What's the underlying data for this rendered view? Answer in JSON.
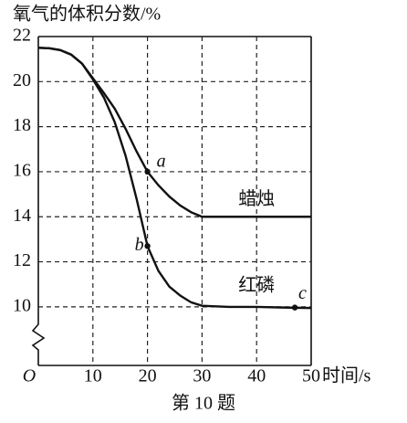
{
  "chart_data": {
    "type": "line",
    "y_label": "氧气的体积分数/%",
    "x_label": "时间/s",
    "caption": "第 10 题",
    "x": [
      0,
      2,
      4,
      6,
      8,
      10,
      12,
      14,
      16,
      18,
      20,
      22,
      24,
      26,
      28,
      30,
      35,
      40,
      45,
      50
    ],
    "series": [
      {
        "name": "蜡烛",
        "color": "#111111",
        "values": [
          21.5,
          21.48,
          21.4,
          21.2,
          20.8,
          20.15,
          19.5,
          18.8,
          17.9,
          16.9,
          16.0,
          15.4,
          14.9,
          14.5,
          14.2,
          14.0,
          14.0,
          14.0,
          14.0,
          14.0
        ]
      },
      {
        "name": "红磷",
        "color": "#111111",
        "values": [
          21.5,
          21.48,
          21.4,
          21.2,
          20.8,
          20.1,
          19.3,
          18.2,
          16.7,
          14.8,
          12.7,
          11.6,
          10.9,
          10.5,
          10.2,
          10.05,
          10.0,
          10.0,
          9.97,
          9.95
        ]
      }
    ],
    "annotations": [
      {
        "label": "a",
        "x": 20,
        "y": 16
      },
      {
        "label": "b",
        "x": 20,
        "y": 12.7
      },
      {
        "label": "c",
        "x": 47,
        "y": 9.97
      }
    ],
    "xlim": [
      0,
      50
    ],
    "ylim": [
      7.4,
      22
    ],
    "xticks": [
      {
        "value": 0,
        "label": "O"
      },
      10,
      20,
      30,
      40,
      50
    ],
    "yticks": [
      10,
      12,
      14,
      16,
      18,
      20,
      22
    ],
    "grid": true
  }
}
